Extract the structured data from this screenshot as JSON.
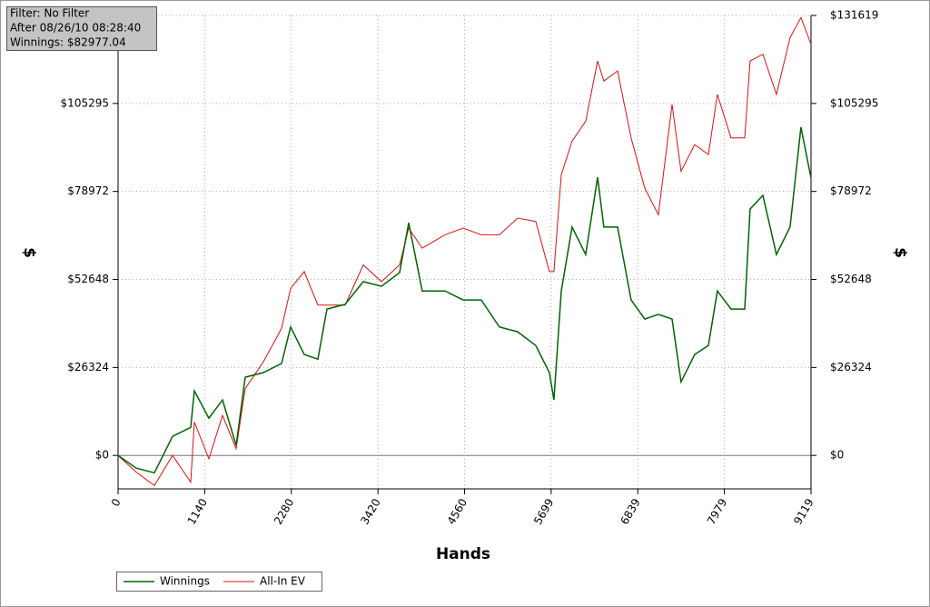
{
  "chart_data": {
    "type": "line",
    "info": [
      "Filter: No Filter",
      "After 08/26/10 08:28:40",
      "Winnings: $82977.04"
    ],
    "x_label": "Hands",
    "y_label": "$",
    "x": [
      0,
      239,
      478,
      717,
      956,
      1004,
      1195,
      1374,
      1554,
      1673,
      1912,
      2151,
      2271,
      2450,
      2629,
      2749,
      2988,
      3227,
      3466,
      3705,
      3824,
      4003,
      4302,
      4541,
      4780,
      5019,
      5258,
      5497,
      5676,
      5736,
      5832,
      5975,
      6154,
      6310,
      6393,
      6573,
      6752,
      6931,
      7110,
      7290,
      7409,
      7588,
      7768,
      7887,
      8066,
      8246,
      8317,
      8485,
      8664,
      8843,
      8986,
      9119
    ],
    "series": [
      {
        "name": "Winnings",
        "color": "#006400",
        "values": [
          0,
          -3800,
          -5200,
          5700,
          8400,
          19300,
          11150,
          16600,
          3000,
          23400,
          24800,
          27500,
          38400,
          30200,
          28800,
          43800,
          45200,
          52000,
          50600,
          54700,
          69600,
          49200,
          49200,
          46500,
          46500,
          38400,
          37000,
          32900,
          24800,
          16600,
          49200,
          68300,
          60100,
          83200,
          68300,
          68300,
          46500,
          40800,
          42200,
          40800,
          22000,
          30200,
          32900,
          49200,
          43800,
          43800,
          73700,
          77800,
          60100,
          68300,
          98200,
          82977
        ]
      },
      {
        "name": "All-In EV",
        "color": "#dd1111",
        "values": [
          0,
          -5000,
          -9000,
          0,
          -8000,
          10000,
          -1000,
          12000,
          2000,
          20000,
          28000,
          38000,
          50000,
          55000,
          45000,
          45000,
          45000,
          57000,
          52000,
          57000,
          68000,
          62000,
          66000,
          68000,
          66000,
          66000,
          71000,
          70000,
          55000,
          55000,
          84000,
          94000,
          100000,
          118000,
          112000,
          115000,
          95000,
          80000,
          72000,
          105000,
          85000,
          93000,
          90000,
          108000,
          95000,
          95000,
          118000,
          120000,
          108000,
          125000,
          131000,
          123000
        ]
      }
    ],
    "xlim": [
      0,
      9119
    ],
    "xticks": [
      0,
      1140,
      2280,
      3420,
      4560,
      5699,
      6839,
      7979,
      9119
    ],
    "ylim": [
      -10000,
      131619
    ],
    "yticks": [
      {
        "value": 0,
        "label": "$0"
      },
      {
        "value": 26324,
        "label": "$26324"
      },
      {
        "value": 52648,
        "label": "$52648"
      },
      {
        "value": 78972,
        "label": "$78972"
      },
      {
        "value": 105295,
        "label": "$105295"
      },
      {
        "value": 131619,
        "label": "$131619"
      }
    ],
    "grid": true
  }
}
